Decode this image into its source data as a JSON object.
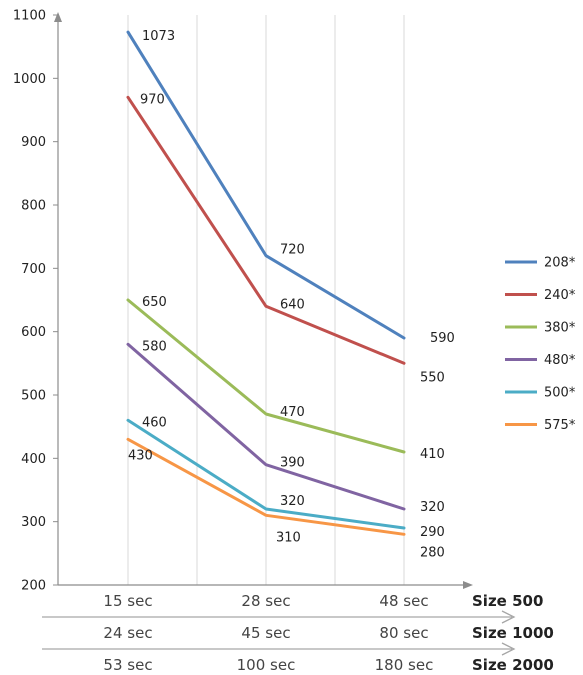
{
  "chart_data": {
    "type": "line",
    "ylim": [
      200,
      1100
    ],
    "y_ticks": [
      200,
      300,
      400,
      500,
      600,
      700,
      800,
      900,
      1000,
      1100
    ],
    "x_rows": [
      {
        "labels": [
          "15 sec",
          "28 sec",
          "48 sec"
        ],
        "size_label": "Size 500"
      },
      {
        "labels": [
          "24 sec",
          "45 sec",
          "80 sec"
        ],
        "size_label": "Size 1000"
      },
      {
        "labels": [
          "53 sec",
          "100 sec",
          "180 sec"
        ],
        "size_label": "Size 2000"
      }
    ],
    "series": [
      {
        "name": "208*",
        "color": "#4f81bd",
        "values": [
          1073,
          720,
          590
        ]
      },
      {
        "name": "240*",
        "color": "#c0504d",
        "values": [
          970,
          640,
          550
        ]
      },
      {
        "name": "380*",
        "color": "#9bbb59",
        "values": [
          650,
          470,
          410
        ]
      },
      {
        "name": "480*",
        "color": "#8064a2",
        "values": [
          580,
          390,
          320
        ]
      },
      {
        "name": "500*",
        "color": "#4bacc6",
        "values": [
          460,
          320,
          290
        ]
      },
      {
        "name": "575*",
        "color": "#f79646",
        "values": [
          430,
          310,
          280
        ]
      }
    ],
    "grid": "vertical",
    "legend": "right"
  }
}
